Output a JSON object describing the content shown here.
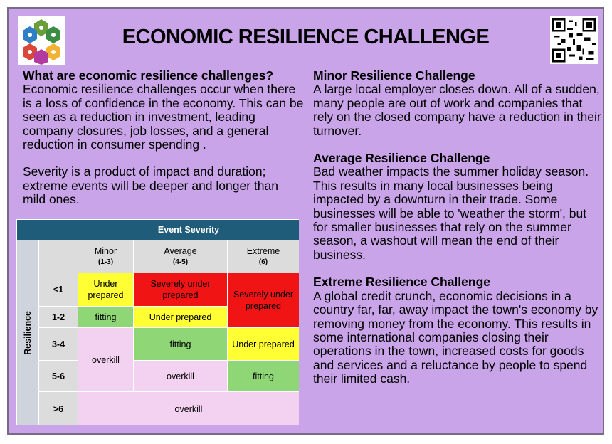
{
  "title": "ECONOMIC RESILIENCE CHALLENGE",
  "left": {
    "heading": "What are economic resilience challenges?",
    "paragraph1": "Economic resilience challenges occur when there is a loss of confidence in the economy. This can be seen as a reduction in investment, leading company closures, job losses, and a general reduction in consumer spending .",
    "paragraph2": "Severity is a product of impact and duration; extreme events will be deeper and longer than mild ones."
  },
  "right": {
    "sections": [
      {
        "heading": "Minor Resilience Challenge",
        "body": "A large local employer closes down. All of a sudden, many people are out of work and companies that rely on the closed company have a reduction in their turnover."
      },
      {
        "heading": "Average Resilience Challenge",
        "body": "Bad weather impacts the summer holiday season. This results in many local businesses being impacted by a downturn in their trade. Some businesses will be able to 'weather the storm', but for smaller businesses that rely on the summer season, a washout will mean the end of their business."
      },
      {
        "heading": "Extreme Resilience Challenge",
        "body": "A global credit crunch, economic decisions in a country far, far, away impact the town's economy by removing money from the economy. This results in some international companies closing their operations in the town, increased costs for goods and services and a reluctance by people to spend their limited cash."
      }
    ]
  },
  "matrix": {
    "header": "Event Severity",
    "row_axis": "Resilience",
    "columns": [
      {
        "label": "Minor",
        "range": "(1-3)"
      },
      {
        "label": "Average",
        "range": "(4-5)"
      },
      {
        "label": "Extreme",
        "range": "(6)"
      }
    ],
    "rows": [
      "<1",
      "1-2",
      "3-4",
      "5-6",
      ">6"
    ],
    "cells": {
      "r1_minor": "Under prepared",
      "r1_average": "Severely under prepared",
      "r12_extreme": "Severely under prepared",
      "r2_minor": "fitting",
      "r2_average": "Under prepared",
      "r34_minor": "overkill",
      "r3_average": "fitting",
      "r3_extreme": "Under prepared",
      "r4_average": "overkill",
      "r4_extreme": "fitting",
      "r5_all": "overkill"
    },
    "colors": {
      "header": "#1f5c7a",
      "red": "#f01414",
      "yellow": "#ffff33",
      "green": "#8ed676",
      "pink": "#f2d2f0"
    }
  },
  "icons": {
    "logo": "community-hexagon-logo",
    "qr": "qr-code"
  }
}
